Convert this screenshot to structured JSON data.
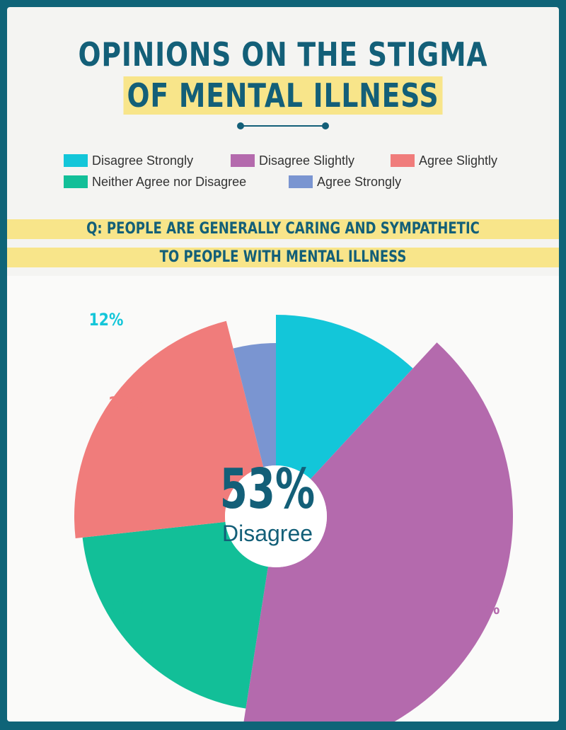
{
  "title_line1": "OPINIONS ON THE STIGMA",
  "title_line2": "OF MENTAL ILLNESS",
  "legend": [
    {
      "label": "Disagree Strongly",
      "color": "#13c6d9"
    },
    {
      "label": "Disagree Slightly",
      "color": "#b46aad"
    },
    {
      "label": "Agree Slightly",
      "color": "#f07c7b"
    },
    {
      "label": "Neither Agree nor Disagree",
      "color": "#12bf98"
    },
    {
      "label": "Agree Strongly",
      "color": "#7a95d1"
    }
  ],
  "question_line1": "Q: PEOPLE ARE GENERALLY CARING AND SYMPATHETIC",
  "question_line2": "TO PEOPLE WITH MENTAL ILLNESS",
  "center_value": "53%",
  "center_label": "Disagree",
  "chart_data": {
    "type": "pie",
    "subtype": "donut",
    "categories": [
      "Disagree Strongly",
      "Disagree Slightly",
      "Neither Agree nor Disagree",
      "Agree Slightly",
      "Agree Strongly"
    ],
    "values": [
      12,
      41,
      21,
      23,
      4
    ],
    "labels": [
      "12%",
      "41%",
      "21%",
      "23%",
      ""
    ],
    "colors": [
      "#13c6d9",
      "#b46aad",
      "#12bf98",
      "#f07c7b",
      "#7a95d1"
    ]
  }
}
